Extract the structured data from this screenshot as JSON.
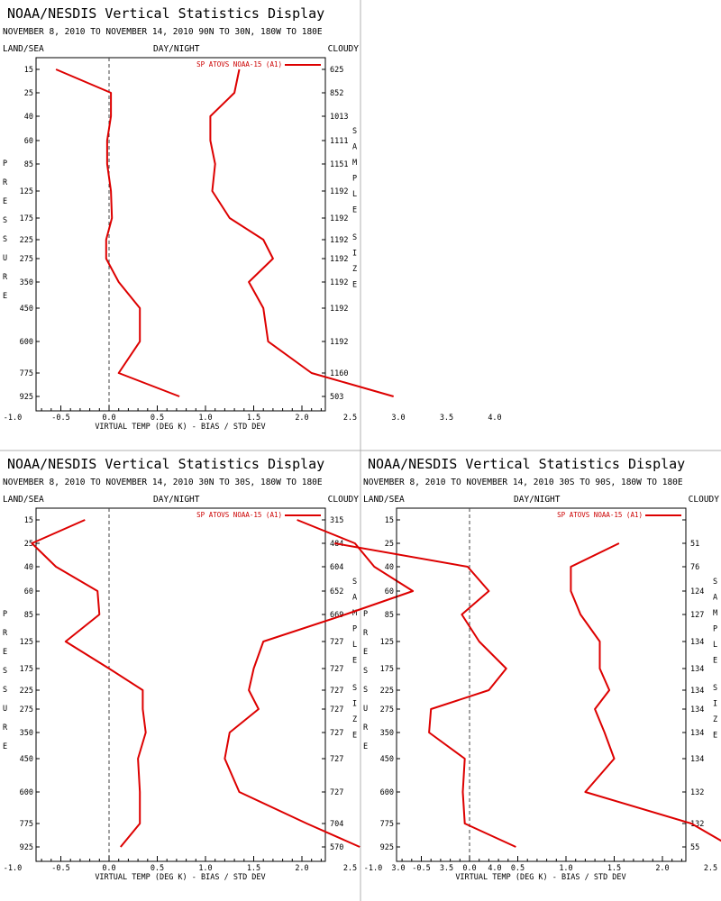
{
  "chart_data": [
    {
      "type": "line",
      "title": "NOAA/NESDIS Vertical Statistics Display",
      "subtitle": "NOVEMBER 8, 2010 TO NOVEMBER 14, 2010 90N TO 30N, 180W TO 180E",
      "header_left": "LAND/SEA",
      "header_center": "DAY/NIGHT",
      "header_right": "CLOUDY",
      "xlabel": "VIRTUAL TEMP (DEG K) - BIAS / STD DEV",
      "ylabel": "PRESSURE",
      "y2label": "SAMPLE SIZE",
      "xlim": [
        -1.5,
        4.0
      ],
      "x_ticks": [
        "-1.0",
        "-0.5",
        "0.0",
        "0.5",
        "1.0",
        "1.5",
        "2.0",
        "2.5",
        "3.0",
        "3.5",
        "4.0"
      ],
      "legend": "SP ATOVS NOAA-15 (A1)",
      "line_color": "#dd0000",
      "pressure_levels": [
        "15",
        "25",
        "40",
        "60",
        "85",
        "125",
        "175",
        "225",
        "275",
        "350",
        "450",
        "600",
        "775",
        "925"
      ],
      "sample_size": [
        "625",
        "852",
        "1013",
        "1111",
        "1151",
        "1192",
        "1192",
        "1192",
        "1192",
        "1192",
        "1192",
        "1192",
        "1160",
        "503"
      ],
      "series": [
        {
          "values": [
            -0.55,
            0.02,
            0.02,
            -0.02,
            -0.02,
            0.02,
            0.03,
            -0.03,
            -0.03,
            0.1,
            0.32,
            0.32,
            0.1,
            0.73
          ]
        },
        {
          "values": [
            1.35,
            1.3,
            1.05,
            1.05,
            1.1,
            1.07,
            1.25,
            1.6,
            1.7,
            1.45,
            1.6,
            1.65,
            2.1,
            2.95
          ]
        }
      ]
    },
    {
      "type": "line",
      "title": "NOAA/NESDIS Vertical Statistics Display",
      "subtitle": "NOVEMBER 8, 2010 TO NOVEMBER 14, 2010 30N TO 30S, 180W TO 180E",
      "header_left": "LAND/SEA",
      "header_center": "DAY/NIGHT",
      "header_right": "CLOUDY",
      "xlabel": "VIRTUAL TEMP (DEG K) - BIAS / STD DEV",
      "ylabel": "PRESSURE",
      "y2label": "SAMPLE SIZE",
      "xlim": [
        -1.5,
        4.0
      ],
      "x_ticks": [
        "-1.0",
        "-0.5",
        "0.0",
        "0.5",
        "1.0",
        "1.5",
        "2.0",
        "2.5",
        "3.0",
        "3.5",
        "4.0"
      ],
      "legend": "SP ATOVS NOAA-15 (A1)",
      "line_color": "#dd0000",
      "pressure_levels": [
        "15",
        "25",
        "40",
        "60",
        "85",
        "125",
        "175",
        "225",
        "275",
        "350",
        "450",
        "600",
        "775",
        "925"
      ],
      "sample_size": [
        "315",
        "484",
        "604",
        "652",
        "669",
        "727",
        "727",
        "727",
        "727",
        "727",
        "727",
        "727",
        "704",
        "570"
      ],
      "series": [
        {
          "values": [
            -0.25,
            -0.8,
            -0.55,
            -0.12,
            -0.1,
            -0.45,
            0.0,
            0.35,
            0.35,
            0.38,
            0.3,
            0.32,
            0.32,
            0.12
          ]
        },
        {
          "values": [
            1.95,
            2.55,
            2.75,
            3.15,
            2.45,
            1.6,
            1.5,
            1.45,
            1.55,
            1.25,
            1.2,
            1.35,
            2.05,
            2.6
          ]
        }
      ]
    },
    {
      "type": "line",
      "title": "NOAA/NESDIS Vertical Statistics Display",
      "subtitle": "NOVEMBER 8, 2010 TO NOVEMBER 14, 2010 30S TO 90S, 180W TO 180E",
      "header_left": "LAND/SEA",
      "header_center": "DAY/NIGHT",
      "header_right": "CLOUDY",
      "xlabel": "VIRTUAL TEMP (DEG K) - BIAS / STD DEV",
      "ylabel": "PRESSURE",
      "y2label": "SAMPLE SIZE",
      "xlim": [
        -1.5,
        4.0
      ],
      "x_ticks": [
        "-1.0",
        "-0.5",
        "0.0",
        "0.5",
        "1.0",
        "1.5",
        "2.0",
        "2.5",
        "3.0",
        "3.5",
        "4.0"
      ],
      "legend": "SP ATOVS NOAA-15 (A1)",
      "line_color": "#dd0000",
      "pressure_levels": [
        "15",
        "25",
        "40",
        "60",
        "85",
        "125",
        "175",
        "225",
        "275",
        "350",
        "450",
        "600",
        "775",
        "925"
      ],
      "sample_size": [
        "",
        "51",
        "76",
        "124",
        "127",
        "134",
        "134",
        "134",
        "134",
        "134",
        "134",
        "132",
        "132",
        "55"
      ],
      "series": [
        {
          "values": [
            null,
            -1.4,
            -0.02,
            0.2,
            -0.08,
            0.1,
            0.38,
            0.2,
            -0.4,
            -0.42,
            -0.05,
            -0.07,
            -0.05,
            0.48
          ]
        },
        {
          "values": [
            null,
            1.55,
            1.05,
            1.05,
            1.15,
            1.35,
            1.35,
            1.45,
            1.3,
            1.4,
            1.5,
            1.2,
            2.3,
            2.72
          ]
        }
      ]
    }
  ]
}
